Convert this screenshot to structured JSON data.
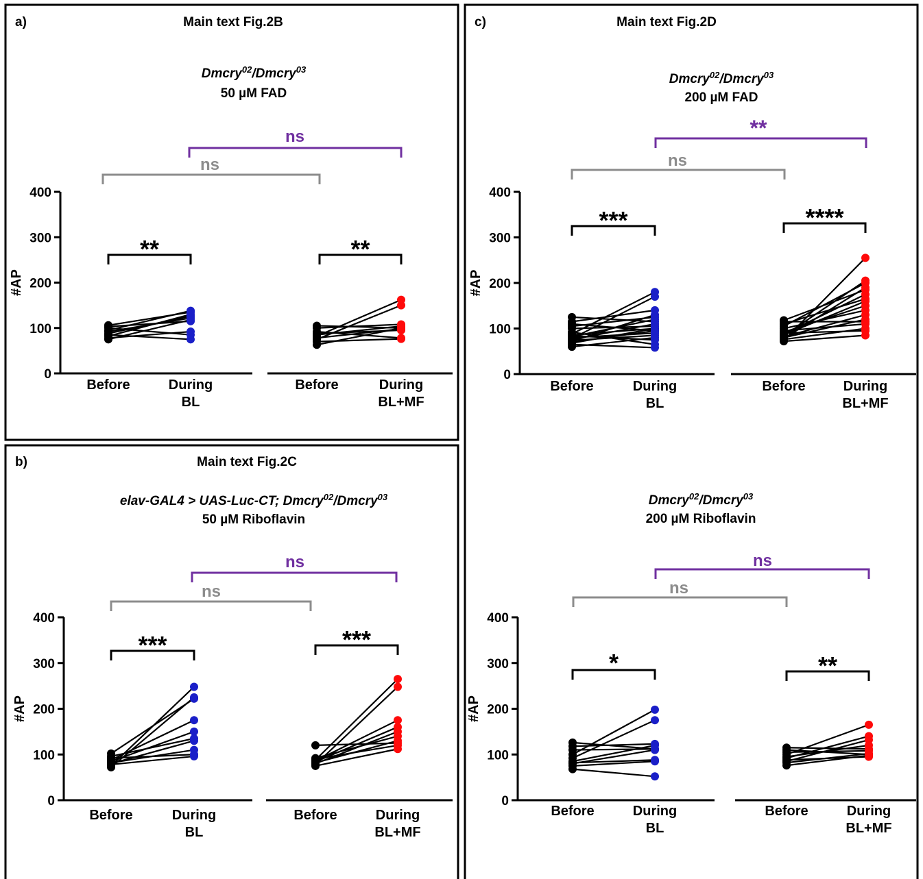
{
  "colors": {
    "before": "#000000",
    "bl": "#1a1fc8",
    "mf": "#ff0a0a",
    "compare_gray": "#8c8c8c",
    "compare_purple": "#7030a0"
  },
  "panels": [
    {
      "letter": "a)",
      "heading": "Main text Fig.2B",
      "genotype": {
        "parts": [
          {
            "t": "Dmcry",
            "i": true
          },
          {
            "t": "02",
            "i": true,
            "sup": true
          },
          {
            "t": "/Dmcry",
            "i": true
          },
          {
            "t": "03",
            "i": true,
            "sup": true
          }
        ]
      },
      "condition": "50 µM FAD"
    },
    {
      "letter": "b)",
      "heading": "Main text Fig.2C",
      "genotype": {
        "parts": [
          {
            "t": "elav-GAL4 > UAS-Luc-CT; Dmcry",
            "i": true
          },
          {
            "t": "02",
            "i": true,
            "sup": true
          },
          {
            "t": "/Dmcry",
            "i": true
          },
          {
            "t": "03",
            "i": true,
            "sup": true
          }
        ]
      },
      "condition": "50 µM Riboflavin"
    },
    {
      "letter": "c)",
      "heading": "Main text Fig.2D",
      "genotype": {
        "parts": [
          {
            "t": "Dmcry",
            "i": true
          },
          {
            "t": "02",
            "i": true,
            "sup": true
          },
          {
            "t": "/Dmcry",
            "i": true
          },
          {
            "t": "03",
            "i": true,
            "sup": true
          }
        ]
      },
      "condition": "200 µM FAD"
    },
    {
      "letter": "",
      "heading": "",
      "genotype": {
        "parts": [
          {
            "t": "Dmcry",
            "i": true
          },
          {
            "t": "02",
            "i": true,
            "sup": true
          },
          {
            "t": "/Dmcry",
            "i": true
          },
          {
            "t": "03",
            "i": true,
            "sup": true
          }
        ]
      },
      "condition": "200 µM Riboflavin"
    }
  ],
  "chart_data": [
    {
      "type": "scatter",
      "panel": "a)",
      "ylabel": "#AP",
      "ylim": [
        0,
        400
      ],
      "yticks": [
        "0",
        "100",
        "200",
        "300",
        "400"
      ],
      "groups": [
        {
          "categories": [
            "Before",
            "During\nBL"
          ],
          "before": [
            75,
            78,
            82,
            85,
            88,
            92,
            95,
            100,
            103,
            106
          ],
          "during": [
            118,
            92,
            130,
            75,
            126,
            122,
            138,
            85,
            115,
            135
          ],
          "during_color": "bl",
          "sig": "**"
        },
        {
          "categories": [
            "Before",
            "During\nBL+MF"
          ],
          "before": [
            63,
            70,
            75,
            78,
            82,
            85,
            88,
            92,
            100,
            105
          ],
          "during": [
            100,
            76,
            150,
            98,
            162,
            104,
            95,
            78,
            108,
            100
          ],
          "during_color": "mf",
          "sig": "**"
        }
      ],
      "comparisons": [
        {
          "label": "ns",
          "color": "compare_gray"
        },
        {
          "label": "ns",
          "color": "compare_purple"
        }
      ]
    },
    {
      "type": "scatter",
      "panel": "b)",
      "ylabel": "#AP",
      "ylim": [
        0,
        400
      ],
      "yticks": [
        "0",
        "100",
        "200",
        "300",
        "400"
      ],
      "groups": [
        {
          "categories": [
            "Before",
            "During\nBL"
          ],
          "before": [
            72,
            75,
            78,
            80,
            82,
            85,
            88,
            92,
            96,
            102
          ],
          "during": [
            225,
            248,
            96,
            130,
            110,
            150,
            175,
            100,
            135,
            222
          ],
          "during_color": "bl",
          "sig": "***"
        },
        {
          "categories": [
            "Before",
            "During\nBL+MF"
          ],
          "before": [
            75,
            78,
            80,
            82,
            84,
            86,
            88,
            90,
            92,
            120
          ],
          "during": [
            112,
            248,
            150,
            130,
            160,
            175,
            265,
            120,
            140,
            125
          ],
          "during_color": "mf",
          "sig": "***"
        }
      ],
      "comparisons": [
        {
          "label": "ns",
          "color": "compare_gray"
        },
        {
          "label": "ns",
          "color": "compare_purple"
        }
      ]
    },
    {
      "type": "scatter",
      "panel": "c)",
      "ylabel": "#AP",
      "ylim": [
        0,
        400
      ],
      "yticks": [
        "0",
        "100",
        "200",
        "300",
        "400"
      ],
      "groups": [
        {
          "categories": [
            "Before",
            "During\nBL"
          ],
          "before": [
            60,
            65,
            68,
            70,
            72,
            74,
            76,
            78,
            80,
            82,
            84,
            86,
            88,
            92,
            100,
            105,
            110,
            115,
            125
          ],
          "during": [
            80,
            58,
            100,
            95,
            130,
            85,
            110,
            170,
            90,
            120,
            75,
            100,
            180,
            65,
            105,
            125,
            95,
            140,
            115
          ],
          "during_color": "bl",
          "sig": "***"
        },
        {
          "categories": [
            "Before",
            "During\nBL+MF"
          ],
          "before": [
            72,
            74,
            76,
            78,
            80,
            82,
            84,
            86,
            88,
            90,
            92,
            95,
            100,
            105,
            110,
            115,
            118
          ],
          "during": [
            85,
            255,
            100,
            190,
            120,
            130,
            205,
            160,
            175,
            95,
            150,
            110,
            140,
            200,
            165,
            115,
            185
          ],
          "during_color": "mf",
          "sig": "****"
        }
      ],
      "comparisons": [
        {
          "label": "ns",
          "color": "compare_gray"
        },
        {
          "label": "**",
          "color": "compare_purple"
        }
      ]
    },
    {
      "type": "scatter",
      "panel": "",
      "ylabel": "#AP",
      "ylim": [
        0,
        400
      ],
      "yticks": [
        "0",
        "100",
        "200",
        "300",
        "400"
      ],
      "groups": [
        {
          "categories": [
            "Before",
            "During\nBL"
          ],
          "before": [
            68,
            75,
            80,
            82,
            85,
            92,
            100,
            110,
            118,
            126
          ],
          "during": [
            52,
            85,
            110,
            88,
            120,
            175,
            198,
            112,
            123,
            112
          ],
          "during_color": "bl",
          "sig": "*"
        },
        {
          "categories": [
            "Before",
            "During\nBL+MF"
          ],
          "before": [
            76,
            82,
            85,
            88,
            92,
            95,
            100,
            105,
            110,
            115
          ],
          "during": [
            98,
            102,
            132,
            95,
            140,
            120,
            165,
            108,
            100,
            112
          ],
          "during_color": "mf",
          "sig": "**"
        }
      ],
      "comparisons": [
        {
          "label": "ns",
          "color": "compare_gray"
        },
        {
          "label": "ns",
          "color": "compare_purple"
        }
      ]
    }
  ]
}
